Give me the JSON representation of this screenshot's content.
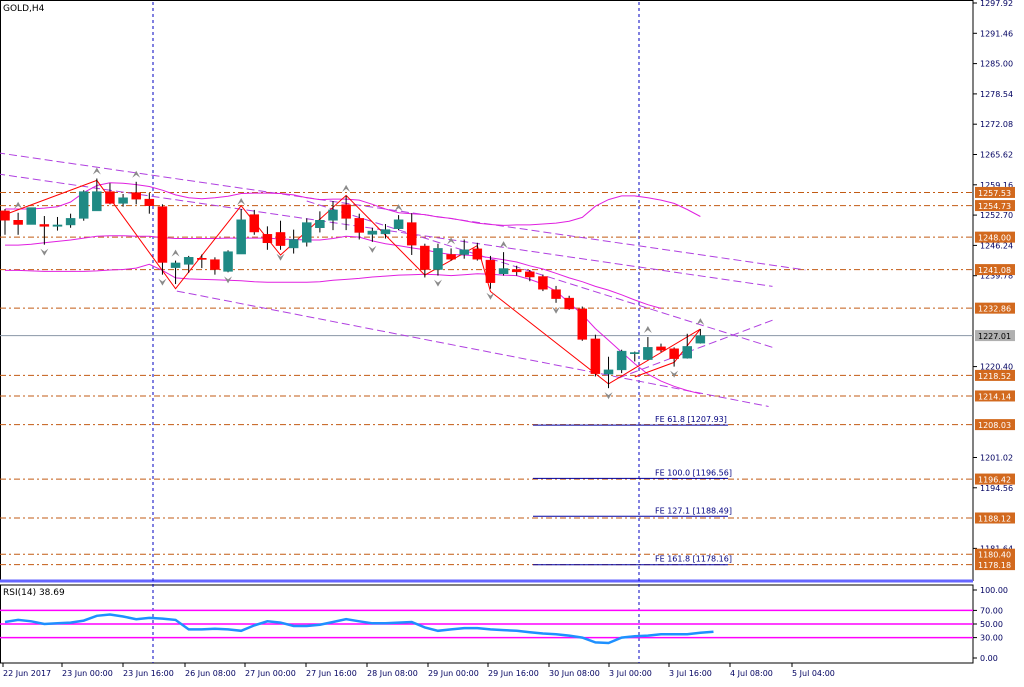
{
  "header": {
    "symbol_label": "GOLD,H4",
    "rsi_label": "RSI(14) 38.69"
  },
  "colors": {
    "bull": "#1f8a84",
    "bear": "#ff0000",
    "fractal": "#8a8a8a",
    "bands": "#e020e0",
    "trend": "#b040e0",
    "level": "#c25b14",
    "level_tag_bg": "#d2691e",
    "price_tag_bg": "#b0b0b0",
    "fe_line": "#0000a0",
    "period_sep": "#0000c0",
    "axis_text": "#000060",
    "rsi_line": "#1e90ff",
    "rsi_levels": "#ff00ff",
    "pane_sep": "#6666ff"
  },
  "chart_data": [
    {
      "type": "candlestick",
      "title": "GOLD,H4",
      "symbol": "GOLD",
      "timeframe": "H4",
      "ylim": [
        1174.9,
        1297.92
      ],
      "grid": false,
      "price_axis_ticks": [
        "1297.92",
        "1291.46",
        "1285.00",
        "1278.54",
        "1272.08",
        "1265.62",
        "1259.16",
        "1252.70",
        "1246.24",
        "1239.78",
        "1220.40",
        "1201.02",
        "1194.56",
        "1181.64"
      ],
      "time_axis_ticks": [
        "22 Jun 2017",
        "23 Jun 00:00",
        "23 Jun 16:00",
        "26 Jun 08:00",
        "27 Jun 00:00",
        "27 Jun 16:00",
        "28 Jun 08:00",
        "29 Jun 00:00",
        "29 Jun 16:00",
        "30 Jun 08:00",
        "3 Jul 00:00",
        "3 Jul 16:00",
        "4 Jul 08:00",
        "5 Jul 04:00"
      ],
      "period_separators": [
        "23 Jun 16:00",
        "3 Jul 00:00"
      ],
      "candles": [
        {
          "o": 1253.6,
          "h": 1254.0,
          "l": 1248.5,
          "c": 1251.6
        },
        {
          "o": 1251.6,
          "h": 1253.2,
          "l": 1248.5,
          "c": 1250.7
        },
        {
          "o": 1250.7,
          "h": 1253.4,
          "l": 1251.0,
          "c": 1254.3
        },
        {
          "o": 1250.7,
          "h": 1252.5,
          "l": 1246.4,
          "c": 1250.3
        },
        {
          "o": 1250.3,
          "h": 1252.3,
          "l": 1249.4,
          "c": 1250.6
        },
        {
          "o": 1250.6,
          "h": 1253.0,
          "l": 1250.0,
          "c": 1252.0
        },
        {
          "o": 1252.0,
          "h": 1258.0,
          "l": 1251.5,
          "c": 1257.7
        },
        {
          "o": 1253.6,
          "h": 1260.5,
          "l": 1254.5,
          "c": 1257.7
        },
        {
          "o": 1257.7,
          "h": 1259.5,
          "l": 1255.0,
          "c": 1255.2
        },
        {
          "o": 1255.2,
          "h": 1257.2,
          "l": 1254.5,
          "c": 1256.4
        },
        {
          "o": 1257.5,
          "h": 1259.8,
          "l": 1255.0,
          "c": 1256.1
        },
        {
          "o": 1256.1,
          "h": 1257.4,
          "l": 1253.0,
          "c": 1254.7
        },
        {
          "o": 1254.5,
          "h": 1255.0,
          "l": 1240.0,
          "c": 1242.6
        },
        {
          "o": 1241.5,
          "h": 1243.0,
          "l": 1238.0,
          "c": 1242.5
        },
        {
          "o": 1242.2,
          "h": 1244.0,
          "l": 1240.4,
          "c": 1243.7
        },
        {
          "o": 1243.5,
          "h": 1244.3,
          "l": 1241.4,
          "c": 1243.4
        },
        {
          "o": 1243.2,
          "h": 1243.7,
          "l": 1240.0,
          "c": 1241.1
        },
        {
          "o": 1240.7,
          "h": 1245.2,
          "l": 1240.5,
          "c": 1244.9
        },
        {
          "o": 1244.4,
          "h": 1254.0,
          "l": 1244.4,
          "c": 1251.7
        },
        {
          "o": 1252.8,
          "h": 1253.8,
          "l": 1248.5,
          "c": 1249.1
        },
        {
          "o": 1248.6,
          "h": 1250.3,
          "l": 1245.3,
          "c": 1246.8
        },
        {
          "o": 1249.0,
          "h": 1251.5,
          "l": 1245.3,
          "c": 1246.2
        },
        {
          "o": 1245.7,
          "h": 1249.6,
          "l": 1244.5,
          "c": 1247.5
        },
        {
          "o": 1246.9,
          "h": 1252.0,
          "l": 1246.0,
          "c": 1251.1
        },
        {
          "o": 1250.0,
          "h": 1253.5,
          "l": 1249.0,
          "c": 1251.6
        },
        {
          "o": 1251.6,
          "h": 1255.7,
          "l": 1249.5,
          "c": 1253.8
        },
        {
          "o": 1254.9,
          "h": 1256.8,
          "l": 1249.5,
          "c": 1252.0
        },
        {
          "o": 1252.0,
          "h": 1253.0,
          "l": 1247.5,
          "c": 1249.0
        },
        {
          "o": 1248.6,
          "h": 1250.0,
          "l": 1247.0,
          "c": 1249.3
        },
        {
          "o": 1248.7,
          "h": 1250.8,
          "l": 1247.7,
          "c": 1249.6
        },
        {
          "o": 1249.8,
          "h": 1252.7,
          "l": 1249.5,
          "c": 1251.7
        },
        {
          "o": 1251.1,
          "h": 1253.1,
          "l": 1244.2,
          "c": 1246.3
        },
        {
          "o": 1246.1,
          "h": 1246.6,
          "l": 1239.4,
          "c": 1241.1
        },
        {
          "o": 1241.1,
          "h": 1246.6,
          "l": 1239.8,
          "c": 1245.6
        },
        {
          "o": 1244.3,
          "h": 1245.6,
          "l": 1243.0,
          "c": 1243.3
        },
        {
          "o": 1244.3,
          "h": 1247.5,
          "l": 1243.4,
          "c": 1245.3
        },
        {
          "o": 1245.5,
          "h": 1246.8,
          "l": 1243.0,
          "c": 1243.3
        },
        {
          "o": 1243.1,
          "h": 1244.0,
          "l": 1237.0,
          "c": 1238.3
        },
        {
          "o": 1240.2,
          "h": 1244.8,
          "l": 1239.8,
          "c": 1241.3
        },
        {
          "o": 1241.1,
          "h": 1241.9,
          "l": 1239.8,
          "c": 1240.6
        },
        {
          "o": 1240.6,
          "h": 1241.0,
          "l": 1238.6,
          "c": 1239.5
        },
        {
          "o": 1239.6,
          "h": 1240.0,
          "l": 1236.5,
          "c": 1236.9
        },
        {
          "o": 1236.8,
          "h": 1237.6,
          "l": 1234.0,
          "c": 1234.9
        },
        {
          "o": 1235.0,
          "h": 1235.5,
          "l": 1232.5,
          "c": 1232.7
        },
        {
          "o": 1232.7,
          "h": 1233.2,
          "l": 1225.9,
          "c": 1226.2
        },
        {
          "o": 1226.3,
          "h": 1227.2,
          "l": 1218.3,
          "c": 1218.9
        },
        {
          "o": 1218.8,
          "h": 1222.5,
          "l": 1215.8,
          "c": 1219.7
        },
        {
          "o": 1219.7,
          "h": 1224.0,
          "l": 1219.0,
          "c": 1223.7
        },
        {
          "o": 1223.2,
          "h": 1223.6,
          "l": 1221.5,
          "c": 1223.4
        },
        {
          "o": 1221.9,
          "h": 1226.7,
          "l": 1221.8,
          "c": 1224.5
        },
        {
          "o": 1224.6,
          "h": 1225.3,
          "l": 1223.5,
          "c": 1223.9
        },
        {
          "o": 1224.2,
          "h": 1224.5,
          "l": 1220.4,
          "c": 1222.1
        },
        {
          "o": 1222.2,
          "h": 1227.4,
          "l": 1222.1,
          "c": 1224.7
        },
        {
          "o": 1225.4,
          "h": 1228.4,
          "l": 1225.3,
          "c": 1227.0
        }
      ],
      "fractals_up": [
        1,
        7,
        10,
        13,
        18,
        26,
        30,
        34,
        38,
        49,
        53
      ],
      "fractals_down": [
        3,
        12,
        17,
        21,
        28,
        33,
        37,
        42,
        46,
        51
      ],
      "zigzag": [
        {
          "i": 0,
          "p": 1252.8
        },
        {
          "i": 7,
          "p": 1260.1
        },
        {
          "i": 13,
          "p": 1237.0
        },
        {
          "i": 18,
          "p": 1254.7
        },
        {
          "i": 21,
          "p": 1244.2
        },
        {
          "i": 26,
          "p": 1256.9
        },
        {
          "i": 32,
          "p": 1239.9
        },
        {
          "i": 36,
          "p": 1246.2
        },
        {
          "i": 37,
          "p": 1236.4
        },
        {
          "i": 46,
          "p": 1216.7
        },
        {
          "i": 53,
          "p": 1228.4
        },
        {
          "i": 51,
          "p": 1221.3
        },
        {
          "i": 48,
          "p": 1218.2
        }
      ],
      "bands_upper": [
        1254.0,
        1254.0,
        1254.0,
        1254.2,
        1254.5,
        1255.5,
        1257.5,
        1259.0,
        1259.6,
        1259.5,
        1259.2,
        1258.8,
        1258.0,
        1257.0,
        1256.4,
        1256.2,
        1256.4,
        1256.7,
        1257.3,
        1257.4,
        1257.4,
        1257.3,
        1257.0,
        1256.4,
        1256.0,
        1256.1,
        1256.1,
        1255.9,
        1255.0,
        1254.0,
        1253.2,
        1253.0,
        1252.8,
        1252.3,
        1252.0,
        1251.5,
        1251.0,
        1250.7,
        1250.5,
        1250.6,
        1250.6,
        1250.8,
        1251.0,
        1251.4,
        1252.2,
        1254.6,
        1256.0,
        1256.8,
        1256.8,
        1256.4,
        1255.9,
        1255.2,
        1253.9,
        1252.4
      ],
      "bands_middle": [
        1246.3,
        1246.3,
        1246.5,
        1246.8,
        1247.1,
        1247.4,
        1247.8,
        1248.2,
        1248.3,
        1248.3,
        1248.2,
        1248.2,
        1247.9,
        1247.7,
        1247.7,
        1247.7,
        1247.7,
        1247.8,
        1247.8,
        1247.8,
        1247.8,
        1247.6,
        1247.5,
        1247.4,
        1247.4,
        1247.7,
        1248.2,
        1248.0,
        1247.2,
        1246.6,
        1246.2,
        1245.7,
        1245.3,
        1244.7,
        1244.3,
        1244.2,
        1244.0,
        1243.6,
        1243.2,
        1242.7,
        1241.9,
        1241.2,
        1240.3,
        1239.3,
        1238.5,
        1237.5,
        1236.7,
        1235.7,
        1234.6,
        1233.6,
        1232.8
      ],
      "bands_lower": [
        1240.9,
        1240.9,
        1240.8,
        1240.7,
        1240.7,
        1240.7,
        1240.7,
        1240.8,
        1241.0,
        1241.1,
        1241.4,
        1242.2,
        1240.9,
        1239.3,
        1239.1,
        1239.0,
        1238.9,
        1238.8,
        1238.7,
        1238.5,
        1238.4,
        1238.4,
        1238.4,
        1238.4,
        1238.5,
        1238.8,
        1239.0,
        1239.2,
        1239.5,
        1239.7,
        1239.9,
        1240.0,
        1240.1,
        1240.0,
        1239.8,
        1240.0,
        1240.2,
        1240.1,
        1239.9,
        1239.8,
        1239.0,
        1238.0,
        1236.5,
        1234.0,
        1231.5,
        1228.5,
        1226.0,
        1223.5,
        1221.0,
        1218.8,
        1217.3,
        1216.2,
        1215.3,
        1214.6
      ],
      "trend_lines": [
        {
          "from": {
            "i": -0.6,
            "p": 1266.0
          },
          "to": {
            "i": 61,
            "p": 1241.0
          }
        },
        {
          "from": {
            "i": -0.6,
            "p": 1261.5
          },
          "to": {
            "i": 58.5,
            "p": 1237.5
          }
        },
        {
          "from": {
            "i": 13.1,
            "p": 1236.5
          },
          "to": {
            "i": 58.2,
            "p": 1211.9
          }
        },
        {
          "from": {
            "i": 23,
            "p": 1255.7
          },
          "to": {
            "i": 58.5,
            "p": 1224.5
          }
        },
        {
          "from": {
            "i": 46.8,
            "p": 1218.0
          },
          "to": {
            "i": 58.6,
            "p": 1230.4
          }
        }
      ],
      "horizontal_levels": [
        {
          "price": 1257.53,
          "label": "1257.53"
        },
        {
          "price": 1254.73,
          "label": "1254.73"
        },
        {
          "price": 1248.0,
          "label": "1248.00"
        },
        {
          "price": 1241.08,
          "label": "1241.08"
        },
        {
          "price": 1232.86,
          "label": "1232.86"
        },
        {
          "price": 1218.52,
          "label": "1218.52"
        },
        {
          "price": 1214.14,
          "label": "1214.14"
        },
        {
          "price": 1208.03,
          "label": "1208.03"
        },
        {
          "price": 1196.42,
          "label": "1196.42"
        },
        {
          "price": 1188.12,
          "label": "1188.12"
        },
        {
          "price": 1180.4,
          "label": "1180.40"
        },
        {
          "price": 1178.18,
          "label": "1178.18"
        }
      ],
      "current_price": {
        "price": 1227.01,
        "label": "1227.01"
      },
      "fibonacci_expansion": [
        {
          "price": 1207.93,
          "label": "FE 61.8 [1207.93]"
        },
        {
          "price": 1196.56,
          "label": "FE 100.0 [1196.56]"
        },
        {
          "price": 1188.49,
          "label": "FE 127.1 [1188.49]"
        },
        {
          "price": 1178.16,
          "label": "FE 161.8 [1178.16]"
        }
      ]
    },
    {
      "type": "line",
      "title": "RSI(14) 38.69",
      "series": [
        {
          "name": "RSI(14)",
          "values": [
            53,
            56,
            54,
            50,
            51,
            52,
            55,
            62,
            64,
            61,
            57,
            59,
            58,
            56,
            42,
            42,
            43,
            42,
            40,
            48,
            54,
            52,
            47,
            47,
            49,
            53,
            57,
            54,
            51,
            51,
            52,
            53,
            45,
            40,
            42,
            44,
            44,
            42,
            41,
            40,
            38,
            36,
            35,
            33,
            30,
            23,
            22,
            30,
            32,
            33,
            35,
            35,
            35,
            37,
            38.69
          ]
        }
      ],
      "ylim": [
        0,
        100
      ],
      "levels": [
        70,
        50,
        30
      ],
      "axis_ticks": [
        "100.00",
        "70.00",
        "50.00",
        "30.00",
        "0.00"
      ]
    }
  ]
}
